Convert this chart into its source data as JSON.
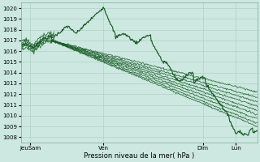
{
  "xlabel": "Pression niveau de la mer( hPa )",
  "ylim": [
    1007.5,
    1020.5
  ],
  "yticks": [
    1008,
    1009,
    1010,
    1011,
    1012,
    1013,
    1014,
    1015,
    1016,
    1017,
    1018,
    1019,
    1020
  ],
  "xtick_labels": [
    "JeuSam",
    "Ven",
    "Dim",
    "Lun"
  ],
  "xtick_positions": [
    0.04,
    0.35,
    0.77,
    0.91
  ],
  "background_color": "#cce8e0",
  "grid_color": "#aaccbb",
  "line_color": "#1a5c28",
  "xlim": [
    0.0,
    1.0
  ]
}
